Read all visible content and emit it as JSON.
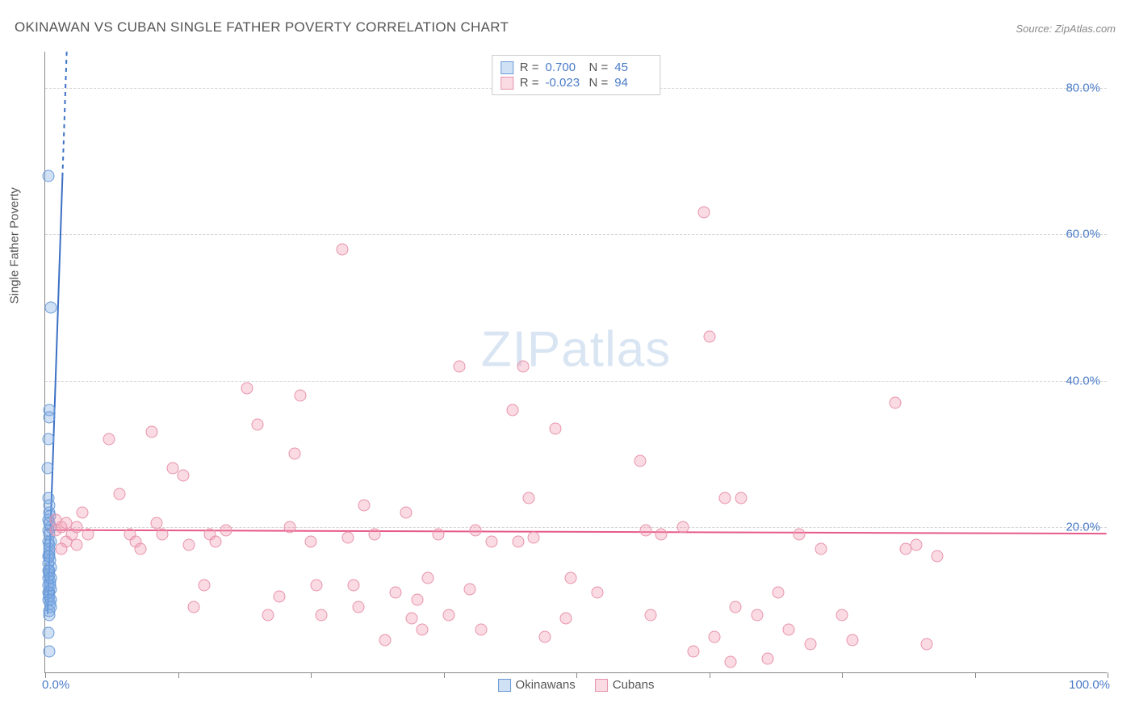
{
  "title": "OKINAWAN VS CUBAN SINGLE FATHER POVERTY CORRELATION CHART",
  "source": "Source: ZipAtlas.com",
  "ylabel": "Single Father Poverty",
  "watermark_a": "ZIP",
  "watermark_b": "atlas",
  "chart": {
    "type": "scatter",
    "xlim": [
      0,
      100
    ],
    "ylim": [
      0,
      85
    ],
    "xtick_positions": [
      0,
      12.5,
      25,
      37.5,
      50,
      62.5,
      75,
      87.5,
      100
    ],
    "xtick_labels": {
      "0": "0.0%",
      "100": "100.0%"
    },
    "ygrid": [
      20,
      40,
      60,
      80
    ],
    "ytick_labels": {
      "20": "20.0%",
      "40": "40.0%",
      "60": "60.0%",
      "80": "80.0%"
    },
    "background_color": "#ffffff",
    "grid_color": "#d5d5d5",
    "axis_color": "#888888",
    "accent_color": "#4a7bc8",
    "marker_size": 15,
    "series": [
      {
        "name": "Okinawans",
        "fill": "rgba(120,165,225,0.35)",
        "stroke": "#6a9bd8",
        "line_color": "#3b70c4",
        "line_width": 2,
        "r": "0.700",
        "n": "45",
        "regression": {
          "x1": 0.2,
          "y1": 8,
          "x2": 2.0,
          "y2": 85,
          "dash_above_x": 1.6
        },
        "points": [
          [
            0.3,
            68
          ],
          [
            0.5,
            50
          ],
          [
            0.4,
            36
          ],
          [
            0.4,
            35
          ],
          [
            0.3,
            32
          ],
          [
            0.2,
            28
          ],
          [
            0.4,
            22
          ],
          [
            0.3,
            21
          ],
          [
            0.5,
            20
          ],
          [
            0.35,
            20.5
          ],
          [
            0.3,
            19.5
          ],
          [
            0.4,
            19
          ],
          [
            0.3,
            18
          ],
          [
            0.5,
            18
          ],
          [
            0.35,
            17
          ],
          [
            0.4,
            16.5
          ],
          [
            0.3,
            16
          ],
          [
            0.45,
            15.5
          ],
          [
            0.3,
            15
          ],
          [
            0.5,
            14.5
          ],
          [
            0.35,
            14
          ],
          [
            0.4,
            13.5
          ],
          [
            0.3,
            13
          ],
          [
            0.45,
            12.5
          ],
          [
            0.3,
            12
          ],
          [
            0.5,
            11.5
          ],
          [
            0.35,
            11
          ],
          [
            0.4,
            10.5
          ],
          [
            0.3,
            10
          ],
          [
            0.45,
            9.5
          ],
          [
            0.5,
            9
          ],
          [
            0.35,
            8.5
          ],
          [
            0.4,
            8
          ],
          [
            0.3,
            11
          ],
          [
            0.45,
            12
          ],
          [
            0.5,
            10
          ],
          [
            0.3,
            5.5
          ],
          [
            0.4,
            3
          ],
          [
            0.35,
            23
          ],
          [
            0.3,
            24
          ],
          [
            0.45,
            21.5
          ],
          [
            0.4,
            17.5
          ],
          [
            0.3,
            14
          ],
          [
            0.5,
            13
          ],
          [
            0.35,
            16
          ]
        ]
      },
      {
        "name": "Cubans",
        "fill": "rgba(240,150,175,0.35)",
        "stroke": "#e793aa",
        "line_color": "#e65a8a",
        "line_width": 2,
        "r": "-0.023",
        "n": "94",
        "regression": {
          "x1": 0,
          "y1": 19.5,
          "x2": 100,
          "y2": 19.0
        },
        "points": [
          [
            1.5,
            20
          ],
          [
            2,
            18
          ],
          [
            1,
            21
          ],
          [
            2.5,
            19
          ],
          [
            3,
            17.5
          ],
          [
            3.5,
            22
          ],
          [
            4,
            19
          ],
          [
            6,
            32
          ],
          [
            7,
            24.5
          ],
          [
            8,
            19
          ],
          [
            8.5,
            18
          ],
          [
            9,
            17
          ],
          [
            10,
            33
          ],
          [
            10.5,
            20.5
          ],
          [
            11,
            19
          ],
          [
            12,
            28
          ],
          [
            13,
            27
          ],
          [
            13.5,
            17.5
          ],
          [
            14,
            9
          ],
          [
            15,
            12
          ],
          [
            15.5,
            19
          ],
          [
            16,
            18
          ],
          [
            17,
            19.5
          ],
          [
            19,
            39
          ],
          [
            20,
            34
          ],
          [
            21,
            8
          ],
          [
            22,
            10.5
          ],
          [
            23,
            20
          ],
          [
            23.5,
            30
          ],
          [
            24,
            38
          ],
          [
            25,
            18
          ],
          [
            25.5,
            12
          ],
          [
            26,
            8
          ],
          [
            28,
            58
          ],
          [
            28.5,
            18.5
          ],
          [
            29,
            12
          ],
          [
            29.5,
            9
          ],
          [
            30,
            23
          ],
          [
            31,
            19
          ],
          [
            32,
            4.5
          ],
          [
            33,
            11
          ],
          [
            34,
            22
          ],
          [
            34.5,
            7.5
          ],
          [
            35,
            10
          ],
          [
            35.5,
            6
          ],
          [
            36,
            13
          ],
          [
            37,
            19
          ],
          [
            38,
            8
          ],
          [
            39,
            42
          ],
          [
            40,
            11.5
          ],
          [
            40.5,
            19.5
          ],
          [
            41,
            6
          ],
          [
            42,
            18
          ],
          [
            44,
            36
          ],
          [
            45,
            42
          ],
          [
            45.5,
            24
          ],
          [
            46,
            18.5
          ],
          [
            47,
            5
          ],
          [
            48,
            33.5
          ],
          [
            49,
            7.5
          ],
          [
            49.5,
            13
          ],
          [
            52,
            11
          ],
          [
            56,
            29
          ],
          [
            57,
            8
          ],
          [
            58,
            19
          ],
          [
            60,
            20
          ],
          [
            61,
            3
          ],
          [
            62,
            63
          ],
          [
            62.5,
            46
          ],
          [
            63,
            5
          ],
          [
            64,
            24
          ],
          [
            64.5,
            1.5
          ],
          [
            65,
            9
          ],
          [
            67,
            8
          ],
          [
            68,
            2
          ],
          [
            69,
            11
          ],
          [
            70,
            6
          ],
          [
            71,
            19
          ],
          [
            72,
            4
          ],
          [
            73,
            17
          ],
          [
            75,
            8
          ],
          [
            76,
            4.5
          ],
          [
            80,
            37
          ],
          [
            81,
            17
          ],
          [
            82,
            17.5
          ],
          [
            83,
            4
          ],
          [
            84,
            16
          ],
          [
            1,
            19.5
          ],
          [
            2,
            20.5
          ],
          [
            1.5,
            17
          ],
          [
            3,
            20
          ],
          [
            56.5,
            19.5
          ],
          [
            65.5,
            24
          ],
          [
            44.5,
            18
          ]
        ]
      }
    ]
  },
  "legend_bottom": [
    "Okinawans",
    "Cubans"
  ]
}
